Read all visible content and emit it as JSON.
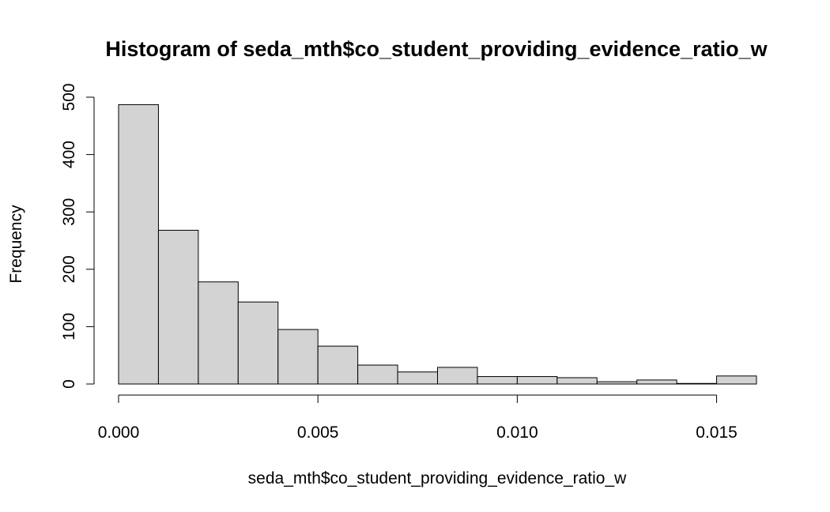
{
  "chart_data": {
    "type": "bar",
    "title": "Histogram of seda_mth$co_student_providing_evidence_ratio_w",
    "xlabel": "seda_mth$co_student_providing_evidence_ratio_w",
    "ylabel": "Frequency",
    "bins": [
      {
        "x0": 0.0,
        "x1": 0.001,
        "count": 487
      },
      {
        "x0": 0.001,
        "x1": 0.002,
        "count": 268
      },
      {
        "x0": 0.002,
        "x1": 0.003,
        "count": 178
      },
      {
        "x0": 0.003,
        "x1": 0.004,
        "count": 143
      },
      {
        "x0": 0.004,
        "x1": 0.005,
        "count": 95
      },
      {
        "x0": 0.005,
        "x1": 0.006,
        "count": 66
      },
      {
        "x0": 0.006,
        "x1": 0.007,
        "count": 33
      },
      {
        "x0": 0.007,
        "x1": 0.008,
        "count": 21
      },
      {
        "x0": 0.008,
        "x1": 0.009,
        "count": 29
      },
      {
        "x0": 0.009,
        "x1": 0.01,
        "count": 13
      },
      {
        "x0": 0.01,
        "x1": 0.011,
        "count": 13
      },
      {
        "x0": 0.011,
        "x1": 0.012,
        "count": 11
      },
      {
        "x0": 0.012,
        "x1": 0.013,
        "count": 4
      },
      {
        "x0": 0.013,
        "x1": 0.014,
        "count": 7
      },
      {
        "x0": 0.014,
        "x1": 0.015,
        "count": 1
      },
      {
        "x0": 0.015,
        "x1": 0.016,
        "count": 14
      }
    ],
    "xticks": [
      0.0,
      0.005,
      0.01,
      0.015
    ],
    "xtick_labels": [
      "0.000",
      "0.005",
      "0.010",
      "0.015"
    ],
    "yticks": [
      0,
      100,
      200,
      300,
      400,
      500
    ],
    "ytick_labels": [
      "0",
      "100",
      "200",
      "300",
      "400",
      "500"
    ],
    "xlim": [
      0.0,
      0.016
    ],
    "ylim": [
      0,
      500
    ],
    "grid": false,
    "bar_color": "#d3d3d3",
    "edge_color": "#000000"
  }
}
